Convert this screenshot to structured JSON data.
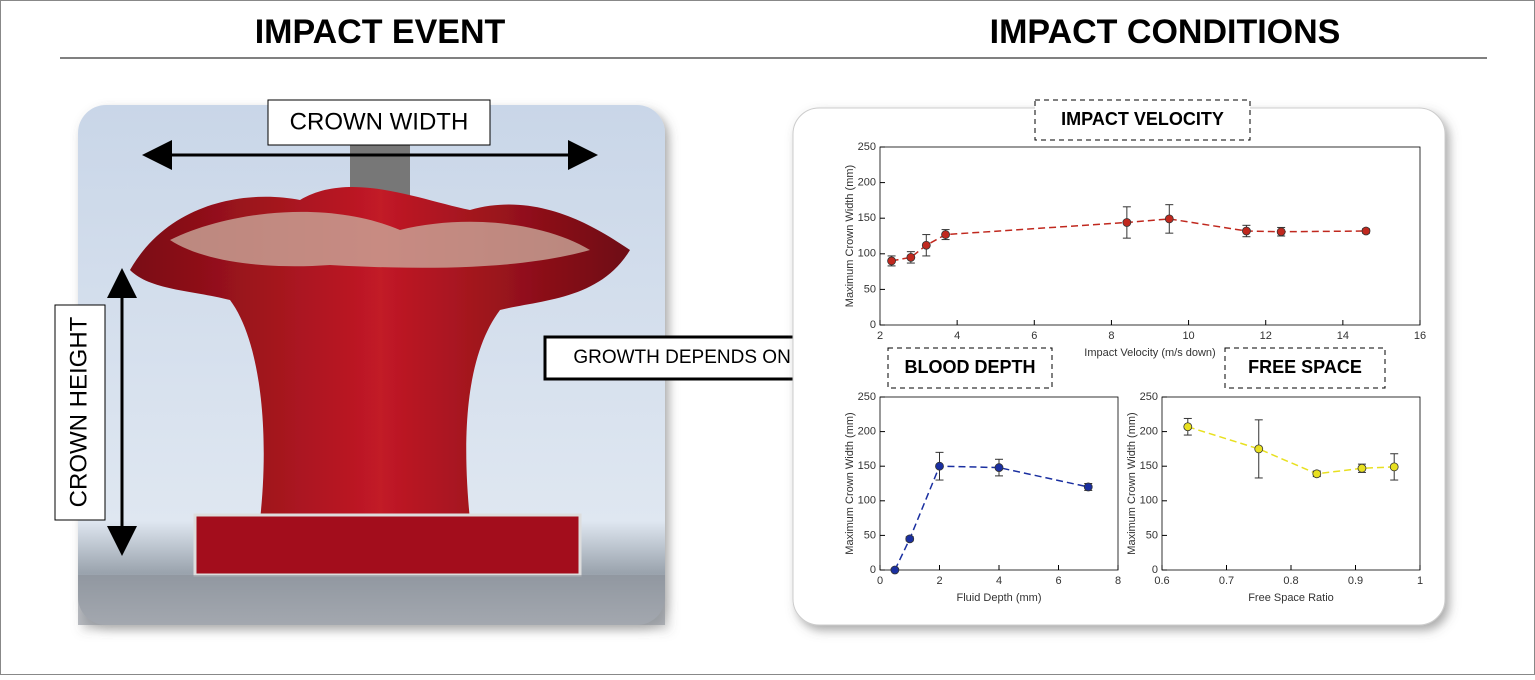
{
  "headings": {
    "left": "IMPACT EVENT",
    "right": "IMPACT CONDITIONS"
  },
  "photo_labels": {
    "width": "CROWN WIDTH",
    "height": "CROWN HEIGHT",
    "arrow": "GROWTH DEPENDS ON..."
  },
  "chart_data": [
    {
      "type": "scatter",
      "title": "IMPACT VELOCITY",
      "x_label": "Impact Velocity (m/s down)",
      "y_label": "Maximum Crown Width (mm)",
      "x": [
        2.3,
        2.8,
        3.2,
        3.7,
        8.4,
        9.5,
        11.5,
        12.4,
        14.6
      ],
      "values": [
        90,
        95,
        112,
        127,
        144,
        149,
        132,
        131,
        132
      ],
      "errors": [
        7,
        8,
        15,
        7,
        22,
        20,
        8,
        6,
        3
      ],
      "color": "#c0281e",
      "xlim": [
        2,
        16
      ],
      "ylim": [
        0,
        250
      ],
      "xticks": [
        2,
        4,
        6,
        8,
        10,
        12,
        14,
        16
      ],
      "yticks": [
        0,
        50,
        100,
        150,
        200,
        250
      ]
    },
    {
      "type": "scatter",
      "title": "BLOOD DEPTH",
      "x_label": "Fluid Depth (mm)",
      "y_label": "Maximum Crown Width (mm)",
      "x": [
        0.5,
        1,
        2,
        4,
        7
      ],
      "values": [
        0,
        45,
        150,
        148,
        120
      ],
      "errors": [
        0,
        3,
        20,
        12,
        5
      ],
      "color": "#1a2fa0",
      "xlim": [
        0,
        8
      ],
      "ylim": [
        0,
        250
      ],
      "xticks": [
        0,
        2,
        4,
        6,
        8
      ],
      "yticks": [
        0,
        50,
        100,
        150,
        200,
        250
      ]
    },
    {
      "type": "scatter",
      "title": "FREE SPACE",
      "x_label": "Free Space Ratio",
      "y_label": "Maximum Crown Width (mm)",
      "x": [
        0.64,
        0.75,
        0.84,
        0.91,
        0.96
      ],
      "values": [
        207,
        175,
        139,
        147,
        149
      ],
      "errors": [
        12,
        42,
        4,
        6,
        19
      ],
      "color": "#e8e020",
      "xlim": [
        0.6,
        1
      ],
      "ylim": [
        0,
        250
      ],
      "xticks": [
        0.6,
        0.7,
        0.8,
        0.9,
        1
      ],
      "yticks": [
        0,
        50,
        100,
        150,
        200,
        250
      ]
    }
  ]
}
